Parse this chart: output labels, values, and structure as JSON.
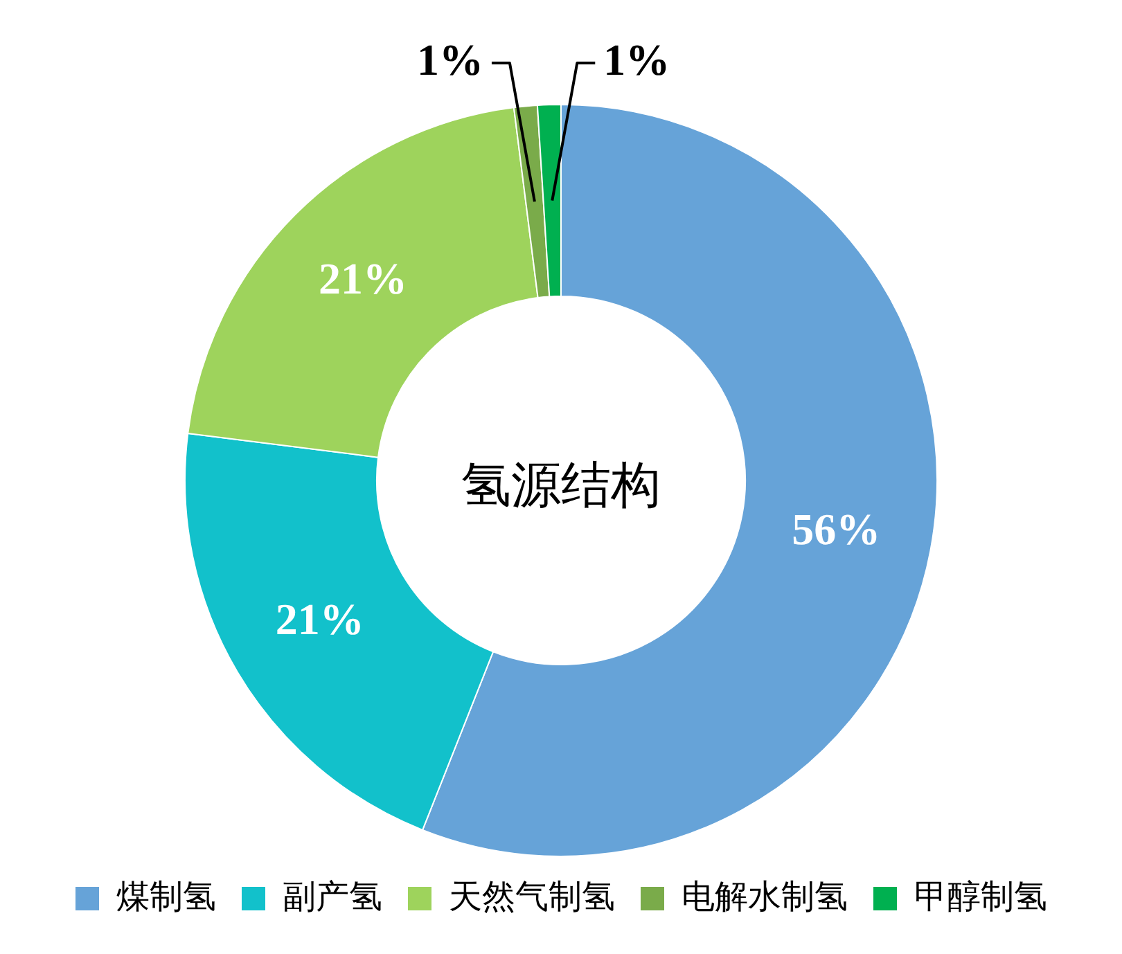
{
  "chart_data": {
    "type": "donut",
    "title": "氢源结构",
    "categories": [
      "煤制氢",
      "副产氢",
      "天然气制氢",
      "电解水制氢",
      "甲醇制氢"
    ],
    "values": [
      56,
      21,
      21,
      1,
      1
    ],
    "colors": [
      "#66a3d8",
      "#12c1cb",
      "#9ed35c",
      "#7aab4a",
      "#00b050"
    ],
    "value_labels": [
      "56%",
      "21%",
      "21%",
      "1%",
      "1%"
    ],
    "legend": "bottom"
  }
}
